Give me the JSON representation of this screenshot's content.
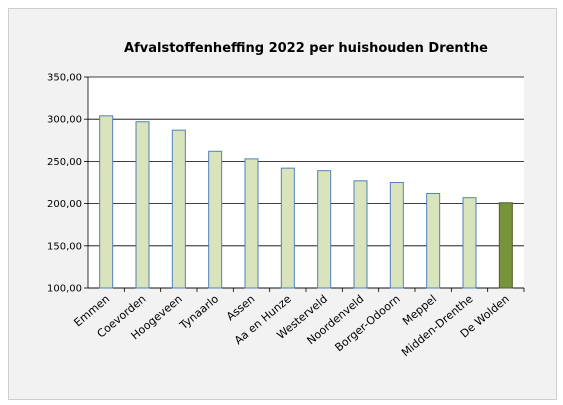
{
  "chart_data": {
    "type": "bar",
    "title": "Afvalstoffenheffing  2022 per huishouden Drenthe",
    "xlabel": "",
    "ylabel": "",
    "ylim": [
      100,
      350
    ],
    "yticks": [
      "100,00",
      "150,00",
      "200,00",
      "250,00",
      "300,00",
      "350,00"
    ],
    "grid": true,
    "legend": "none",
    "categories": [
      "Emmen",
      "Coevorden",
      "Hoogeveen",
      "Tynaarlo",
      "Assen",
      "Aa en Hunze",
      "Westerveld",
      "Noordenveld",
      "Borger-Odoorn",
      "Meppel",
      "Midden-Drenthe",
      "De Wolden"
    ],
    "values": [
      304,
      297,
      287,
      262,
      253,
      242,
      239,
      227,
      225,
      212,
      207,
      201
    ],
    "highlight_index": 11,
    "colors": {
      "bar_fill": "#d9e4bc",
      "bar_stroke": "#4f81bd",
      "highlight_fill": "#77933c",
      "highlight_stroke": "#4f6228",
      "plot_bg": "#ffffff",
      "grid": "#000000"
    }
  }
}
